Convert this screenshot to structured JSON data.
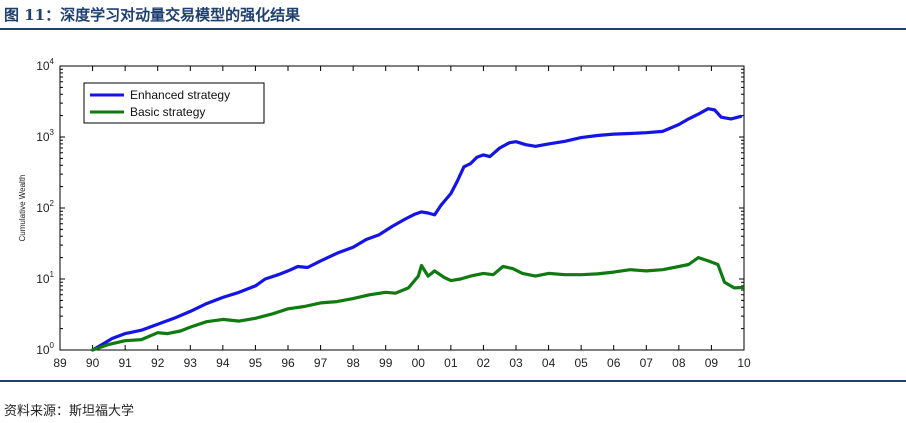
{
  "header": {
    "title": "图 11：深度学习对动量交易模型的强化结果"
  },
  "footer": {
    "source": "资料来源：斯坦福大学"
  },
  "colors": {
    "accent": "#1f3f6e",
    "enhanced": "#1414e6",
    "basic": "#0f7a0f"
  },
  "chart_data": {
    "type": "line",
    "title": "",
    "xlabel": "",
    "ylabel": "Cumulative Wealth",
    "yscale": "log",
    "ylim": [
      1,
      10000
    ],
    "xlim": [
      1989,
      2010
    ],
    "xticks": [
      1989,
      1990,
      1991,
      1992,
      1993,
      1994,
      1995,
      1996,
      1997,
      1998,
      1999,
      2000,
      2001,
      2002,
      2003,
      2004,
      2005,
      2006,
      2007,
      2008,
      2009,
      2010
    ],
    "xtick_labels": [
      "89",
      "90",
      "91",
      "92",
      "93",
      "94",
      "95",
      "96",
      "97",
      "98",
      "99",
      "00",
      "01",
      "02",
      "03",
      "04",
      "05",
      "06",
      "07",
      "08",
      "09",
      "10"
    ],
    "yticks": [
      1,
      10,
      100,
      1000,
      10000
    ],
    "ytick_labels": [
      {
        "base": "10",
        "exp": "0"
      },
      {
        "base": "10",
        "exp": "1"
      },
      {
        "base": "10",
        "exp": "2"
      },
      {
        "base": "10",
        "exp": "3"
      },
      {
        "base": "10",
        "exp": "4"
      }
    ],
    "grid": false,
    "legend_position": "top-left",
    "series": [
      {
        "name": "Enhanced strategy",
        "color": "#1414e6",
        "points": [
          [
            1990.0,
            1.0
          ],
          [
            1990.3,
            1.2
          ],
          [
            1990.6,
            1.45
          ],
          [
            1991.0,
            1.7
          ],
          [
            1991.5,
            1.9
          ],
          [
            1992.0,
            2.3
          ],
          [
            1992.5,
            2.8
          ],
          [
            1993.0,
            3.5
          ],
          [
            1993.5,
            4.5
          ],
          [
            1994.0,
            5.5
          ],
          [
            1994.5,
            6.5
          ],
          [
            1995.0,
            8.0
          ],
          [
            1995.3,
            10.0
          ],
          [
            1995.7,
            11.5
          ],
          [
            1996.0,
            13.0
          ],
          [
            1996.3,
            15.0
          ],
          [
            1996.6,
            14.5
          ],
          [
            1997.0,
            18.0
          ],
          [
            1997.5,
            23.0
          ],
          [
            1998.0,
            28.0
          ],
          [
            1998.4,
            36.0
          ],
          [
            1998.8,
            42.0
          ],
          [
            1999.2,
            55.0
          ],
          [
            1999.6,
            70.0
          ],
          [
            1999.9,
            82.0
          ],
          [
            2000.1,
            88.0
          ],
          [
            2000.3,
            85.0
          ],
          [
            2000.5,
            80.0
          ],
          [
            2000.7,
            110.0
          ],
          [
            2001.0,
            160.0
          ],
          [
            2001.2,
            240.0
          ],
          [
            2001.4,
            380.0
          ],
          [
            2001.6,
            420.0
          ],
          [
            2001.8,
            520.0
          ],
          [
            2002.0,
            560.0
          ],
          [
            2002.2,
            530.0
          ],
          [
            2002.5,
            700.0
          ],
          [
            2002.8,
            830.0
          ],
          [
            2003.0,
            860.0
          ],
          [
            2003.3,
            780.0
          ],
          [
            2003.6,
            740.0
          ],
          [
            2004.0,
            800.0
          ],
          [
            2004.5,
            870.0
          ],
          [
            2005.0,
            980.0
          ],
          [
            2005.5,
            1050.0
          ],
          [
            2006.0,
            1100.0
          ],
          [
            2006.5,
            1120.0
          ],
          [
            2007.0,
            1150.0
          ],
          [
            2007.5,
            1200.0
          ],
          [
            2008.0,
            1500.0
          ],
          [
            2008.3,
            1800.0
          ],
          [
            2008.6,
            2100.0
          ],
          [
            2008.9,
            2500.0
          ],
          [
            2009.1,
            2400.0
          ],
          [
            2009.3,
            1900.0
          ],
          [
            2009.6,
            1800.0
          ],
          [
            2009.9,
            1950.0
          ]
        ]
      },
      {
        "name": "Basic strategy",
        "color": "#0f7a0f",
        "points": [
          [
            1990.0,
            1.0
          ],
          [
            1990.5,
            1.2
          ],
          [
            1991.0,
            1.35
          ],
          [
            1991.5,
            1.4
          ],
          [
            1992.0,
            1.75
          ],
          [
            1992.3,
            1.7
          ],
          [
            1992.7,
            1.85
          ],
          [
            1993.0,
            2.1
          ],
          [
            1993.5,
            2.5
          ],
          [
            1994.0,
            2.7
          ],
          [
            1994.5,
            2.55
          ],
          [
            1995.0,
            2.8
          ],
          [
            1995.5,
            3.2
          ],
          [
            1996.0,
            3.8
          ],
          [
            1996.5,
            4.1
          ],
          [
            1997.0,
            4.6
          ],
          [
            1997.5,
            4.8
          ],
          [
            1998.0,
            5.3
          ],
          [
            1998.5,
            6.0
          ],
          [
            1999.0,
            6.5
          ],
          [
            1999.3,
            6.3
          ],
          [
            1999.7,
            7.5
          ],
          [
            2000.0,
            11.0
          ],
          [
            2000.1,
            15.5
          ],
          [
            2000.3,
            11.0
          ],
          [
            2000.5,
            13.0
          ],
          [
            2000.8,
            10.5
          ],
          [
            2001.0,
            9.5
          ],
          [
            2001.3,
            10.0
          ],
          [
            2001.6,
            11.0
          ],
          [
            2002.0,
            12.0
          ],
          [
            2002.3,
            11.5
          ],
          [
            2002.6,
            15.0
          ],
          [
            2002.9,
            14.0
          ],
          [
            2003.2,
            12.0
          ],
          [
            2003.6,
            11.0
          ],
          [
            2004.0,
            12.0
          ],
          [
            2004.5,
            11.5
          ],
          [
            2005.0,
            11.5
          ],
          [
            2005.5,
            11.8
          ],
          [
            2006.0,
            12.5
          ],
          [
            2006.5,
            13.5
          ],
          [
            2007.0,
            13.0
          ],
          [
            2007.5,
            13.5
          ],
          [
            2008.0,
            15.0
          ],
          [
            2008.3,
            16.0
          ],
          [
            2008.6,
            20.0
          ],
          [
            2008.9,
            18.0
          ],
          [
            2009.2,
            16.0
          ],
          [
            2009.4,
            9.0
          ],
          [
            2009.7,
            7.5
          ],
          [
            2009.95,
            7.6
          ]
        ]
      }
    ]
  }
}
